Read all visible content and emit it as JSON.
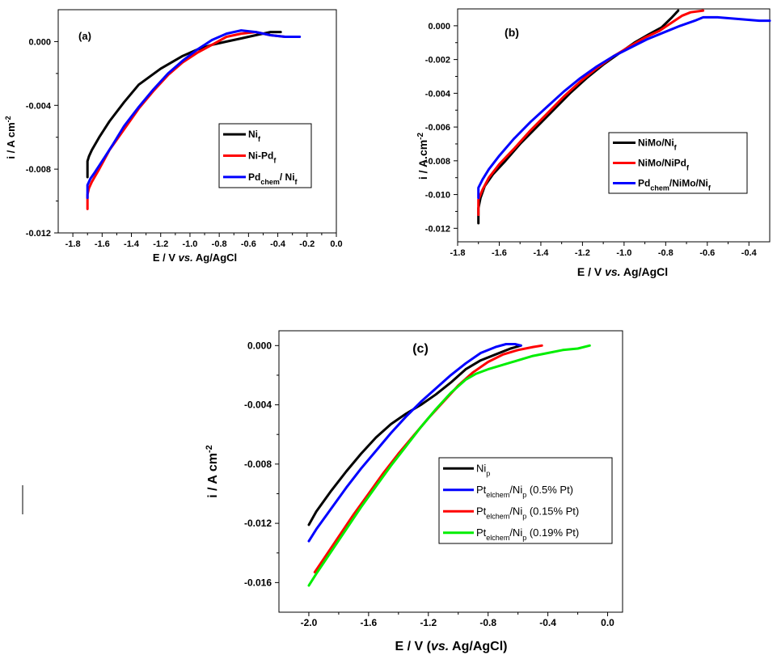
{
  "chart_data": [
    {
      "type": "line",
      "panel_label": "(a)",
      "xlabel_parts": [
        "E / V ",
        "vs.",
        " Ag/AgCl"
      ],
      "ylabel": "i / A cm",
      "ylabel_sup": "-2",
      "xlim": [
        -1.9,
        0.0
      ],
      "ylim": [
        -0.012,
        0.002
      ],
      "xticks": [
        "-1.8",
        "-1.6",
        "-1.4",
        "-1.2",
        "-1.0",
        "-0.8",
        "-0.6",
        "-0.4",
        "-0.2",
        "0.0"
      ],
      "yticks": [
        "0.000",
        "-0.004",
        "-0.008",
        "-0.012"
      ],
      "legend_position": "right",
      "grid": false,
      "series": [
        {
          "name": "Ni",
          "sub": "f",
          "color": "#000000",
          "x": [
            -1.7,
            -1.7,
            -1.69,
            -1.67,
            -1.62,
            -1.55,
            -1.45,
            -1.35,
            -1.2,
            -1.05,
            -0.95,
            -0.85,
            -0.75,
            -0.65,
            -0.55,
            -0.45,
            -0.38
          ],
          "y": [
            -0.0085,
            -0.0075,
            -0.0072,
            -0.0068,
            -0.006,
            -0.005,
            -0.0038,
            -0.0027,
            -0.0017,
            -0.0009,
            -0.0005,
            -0.0002,
            0.0,
            0.0002,
            0.0004,
            0.0006,
            0.0006
          ]
        },
        {
          "name": "Ni-Pd",
          "sub": "f",
          "color": "#ff0000",
          "x": [
            -1.7,
            -1.7,
            -1.69,
            -1.67,
            -1.62,
            -1.55,
            -1.45,
            -1.35,
            -1.25,
            -1.15,
            -1.05,
            -0.95,
            -0.85,
            -0.75,
            -0.65,
            -0.55,
            -0.45,
            -0.35
          ],
          "y": [
            -0.0105,
            -0.0096,
            -0.0092,
            -0.0088,
            -0.008,
            -0.0068,
            -0.0055,
            -0.0042,
            -0.0031,
            -0.0021,
            -0.0013,
            -0.0007,
            -0.0002,
            0.0003,
            0.0005,
            0.0006,
            0.0004,
            0.0003
          ]
        },
        {
          "name": "Pd",
          "sub": "chem",
          "suffix": "/ Ni",
          "suffix_sub": "f",
          "color": "#0000ff",
          "x": [
            -1.7,
            -1.7,
            -1.68,
            -1.65,
            -1.6,
            -1.53,
            -1.45,
            -1.35,
            -1.25,
            -1.15,
            -1.05,
            -0.95,
            -0.85,
            -0.75,
            -0.65,
            -0.55,
            -0.45,
            -0.35,
            -0.25
          ],
          "y": [
            -0.0098,
            -0.009,
            -0.0086,
            -0.0082,
            -0.0075,
            -0.0065,
            -0.0053,
            -0.0041,
            -0.003,
            -0.002,
            -0.0012,
            -0.0005,
            0.0001,
            0.0005,
            0.0007,
            0.0006,
            0.0004,
            0.0003,
            0.0003
          ]
        }
      ]
    },
    {
      "type": "line",
      "panel_label": "(b)",
      "xlabel_parts": [
        "E / V ",
        "vs.",
        " Ag/AgCl"
      ],
      "ylabel": "i / A.cm",
      "ylabel_sup": "-2",
      "xlim": [
        -1.8,
        -0.3
      ],
      "ylim": [
        -0.0128,
        0.001
      ],
      "xticks": [
        "-1.8",
        "-1.6",
        "-1.4",
        "-1.2",
        "-1.0",
        "-0.8",
        "-0.6",
        "-0.4"
      ],
      "yticks": [
        "0.000",
        "-0.002",
        "-0.004",
        "-0.006",
        "-0.008",
        "-0.010",
        "-0.012"
      ],
      "legend_position": "right",
      "grid": false,
      "series": [
        {
          "name": "NiMo/Ni",
          "sub": "f",
          "color": "#000000",
          "x": [
            -1.7,
            -1.7,
            -1.69,
            -1.67,
            -1.63,
            -1.57,
            -1.5,
            -1.42,
            -1.34,
            -1.26,
            -1.18,
            -1.1,
            -1.02,
            -0.95,
            -0.88,
            -0.82,
            -0.77,
            -0.74
          ],
          "y": [
            -0.0117,
            -0.0108,
            -0.0102,
            -0.0095,
            -0.0088,
            -0.008,
            -0.007,
            -0.006,
            -0.005,
            -0.004,
            -0.0031,
            -0.0023,
            -0.0016,
            -0.001,
            -0.0005,
            -0.0001,
            0.0005,
            0.0009
          ]
        },
        {
          "name": "NiMo/NiPd",
          "sub": "f",
          "color": "#ff0000",
          "x": [
            -1.7,
            -1.7,
            -1.68,
            -1.65,
            -1.6,
            -1.53,
            -1.45,
            -1.37,
            -1.29,
            -1.21,
            -1.13,
            -1.05,
            -0.97,
            -0.9,
            -0.83,
            -0.77,
            -0.72,
            -0.68,
            -0.62
          ],
          "y": [
            -0.0112,
            -0.0103,
            -0.0097,
            -0.009,
            -0.0082,
            -0.0073,
            -0.0062,
            -0.0052,
            -0.0042,
            -0.0033,
            -0.0025,
            -0.0018,
            -0.0012,
            -0.0007,
            -0.0003,
            0.0002,
            0.0006,
            0.0008,
            0.0009
          ]
        },
        {
          "name": "Pd",
          "sub": "chem",
          "suffix": "/NiMo/Ni",
          "suffix_sub": "f",
          "color": "#0000ff",
          "x": [
            -1.7,
            -1.7,
            -1.68,
            -1.65,
            -1.6,
            -1.53,
            -1.45,
            -1.37,
            -1.29,
            -1.21,
            -1.13,
            -1.05,
            -0.97,
            -0.89,
            -0.81,
            -0.73,
            -0.66,
            -0.62,
            -0.55,
            -0.45,
            -0.35,
            -0.3
          ],
          "y": [
            -0.0102,
            -0.0096,
            -0.0091,
            -0.0085,
            -0.0077,
            -0.0067,
            -0.0057,
            -0.0048,
            -0.0039,
            -0.0031,
            -0.0024,
            -0.0018,
            -0.0013,
            -0.0008,
            -0.0004,
            0.0,
            0.0003,
            0.0005,
            0.0005,
            0.0004,
            0.0003,
            0.0003
          ]
        }
      ]
    },
    {
      "type": "line",
      "panel_label": "(c)",
      "xlabel_parts": [
        "E / V (",
        "vs.",
        " Ag/AgCl)"
      ],
      "ylabel": "i / A cm",
      "ylabel_sup": "-2",
      "xlim": [
        -2.2,
        0.1
      ],
      "ylim": [
        -0.018,
        0.001
      ],
      "xticks": [
        "-2.0",
        "-1.6",
        "-1.2",
        "-0.8",
        "-0.4",
        "0.0"
      ],
      "yticks": [
        "0.000",
        "-0.004",
        "-0.008",
        "-0.012",
        "-0.016"
      ],
      "legend_position": "right",
      "grid": false,
      "series": [
        {
          "name": "Ni",
          "sub": "p",
          "color": "#000000",
          "x": [
            -2.0,
            -1.95,
            -1.85,
            -1.75,
            -1.65,
            -1.55,
            -1.45,
            -1.35,
            -1.25,
            -1.15,
            -1.05,
            -0.95,
            -0.85,
            -0.75,
            -0.65,
            -0.58
          ],
          "y": [
            -0.0121,
            -0.0112,
            -0.0098,
            -0.0085,
            -0.0073,
            -0.0062,
            -0.0053,
            -0.0046,
            -0.004,
            -0.0033,
            -0.0025,
            -0.0016,
            -0.001,
            -0.0006,
            -0.0002,
            0.0
          ]
        },
        {
          "name": "Pt",
          "sub": "elchem",
          "suffix": "/Ni",
          "suffix_sub": "p",
          "tail": " (0.5% Pt)",
          "color": "#0000ff",
          "x": [
            -2.0,
            -1.95,
            -1.85,
            -1.75,
            -1.65,
            -1.55,
            -1.45,
            -1.35,
            -1.25,
            -1.15,
            -1.05,
            -0.95,
            -0.85,
            -0.75,
            -0.68,
            -0.62,
            -0.58
          ],
          "y": [
            -0.0132,
            -0.0124,
            -0.011,
            -0.0096,
            -0.0083,
            -0.0071,
            -0.0059,
            -0.0048,
            -0.0038,
            -0.0029,
            -0.002,
            -0.0012,
            -0.0005,
            -0.0001,
            0.0001,
            0.0001,
            0.0
          ]
        },
        {
          "name": "Pt",
          "sub": "elchem",
          "suffix": "/Ni",
          "suffix_sub": "p",
          "tail": " (0.15% Pt)",
          "color": "#ff0000",
          "x": [
            -1.96,
            -1.9,
            -1.8,
            -1.7,
            -1.6,
            -1.5,
            -1.4,
            -1.3,
            -1.2,
            -1.1,
            -1.0,
            -0.9,
            -0.8,
            -0.7,
            -0.6,
            -0.5,
            -0.44
          ],
          "y": [
            -0.0153,
            -0.0144,
            -0.0129,
            -0.0114,
            -0.01,
            -0.0086,
            -0.0073,
            -0.0061,
            -0.0049,
            -0.0038,
            -0.0027,
            -0.0018,
            -0.0011,
            -0.0006,
            -0.0003,
            -0.0001,
            0.0
          ]
        },
        {
          "name": "Pt",
          "sub": "elchem",
          "suffix": "/Ni",
          "suffix_sub": "p",
          "tail": " (0.19% Pt)",
          "color": "#00ee00",
          "x": [
            -2.0,
            -1.95,
            -1.85,
            -1.75,
            -1.65,
            -1.55,
            -1.45,
            -1.35,
            -1.25,
            -1.15,
            -1.05,
            -0.95,
            -0.88,
            -0.8,
            -0.7,
            -0.6,
            -0.5,
            -0.4,
            -0.3,
            -0.2,
            -0.12
          ],
          "y": [
            -0.0162,
            -0.0154,
            -0.0139,
            -0.0124,
            -0.0109,
            -0.0095,
            -0.0081,
            -0.0068,
            -0.0055,
            -0.0043,
            -0.0032,
            -0.0023,
            -0.0019,
            -0.0016,
            -0.0013,
            -0.001,
            -0.0007,
            -0.0005,
            -0.0003,
            -0.0002,
            0.0
          ]
        }
      ]
    }
  ]
}
